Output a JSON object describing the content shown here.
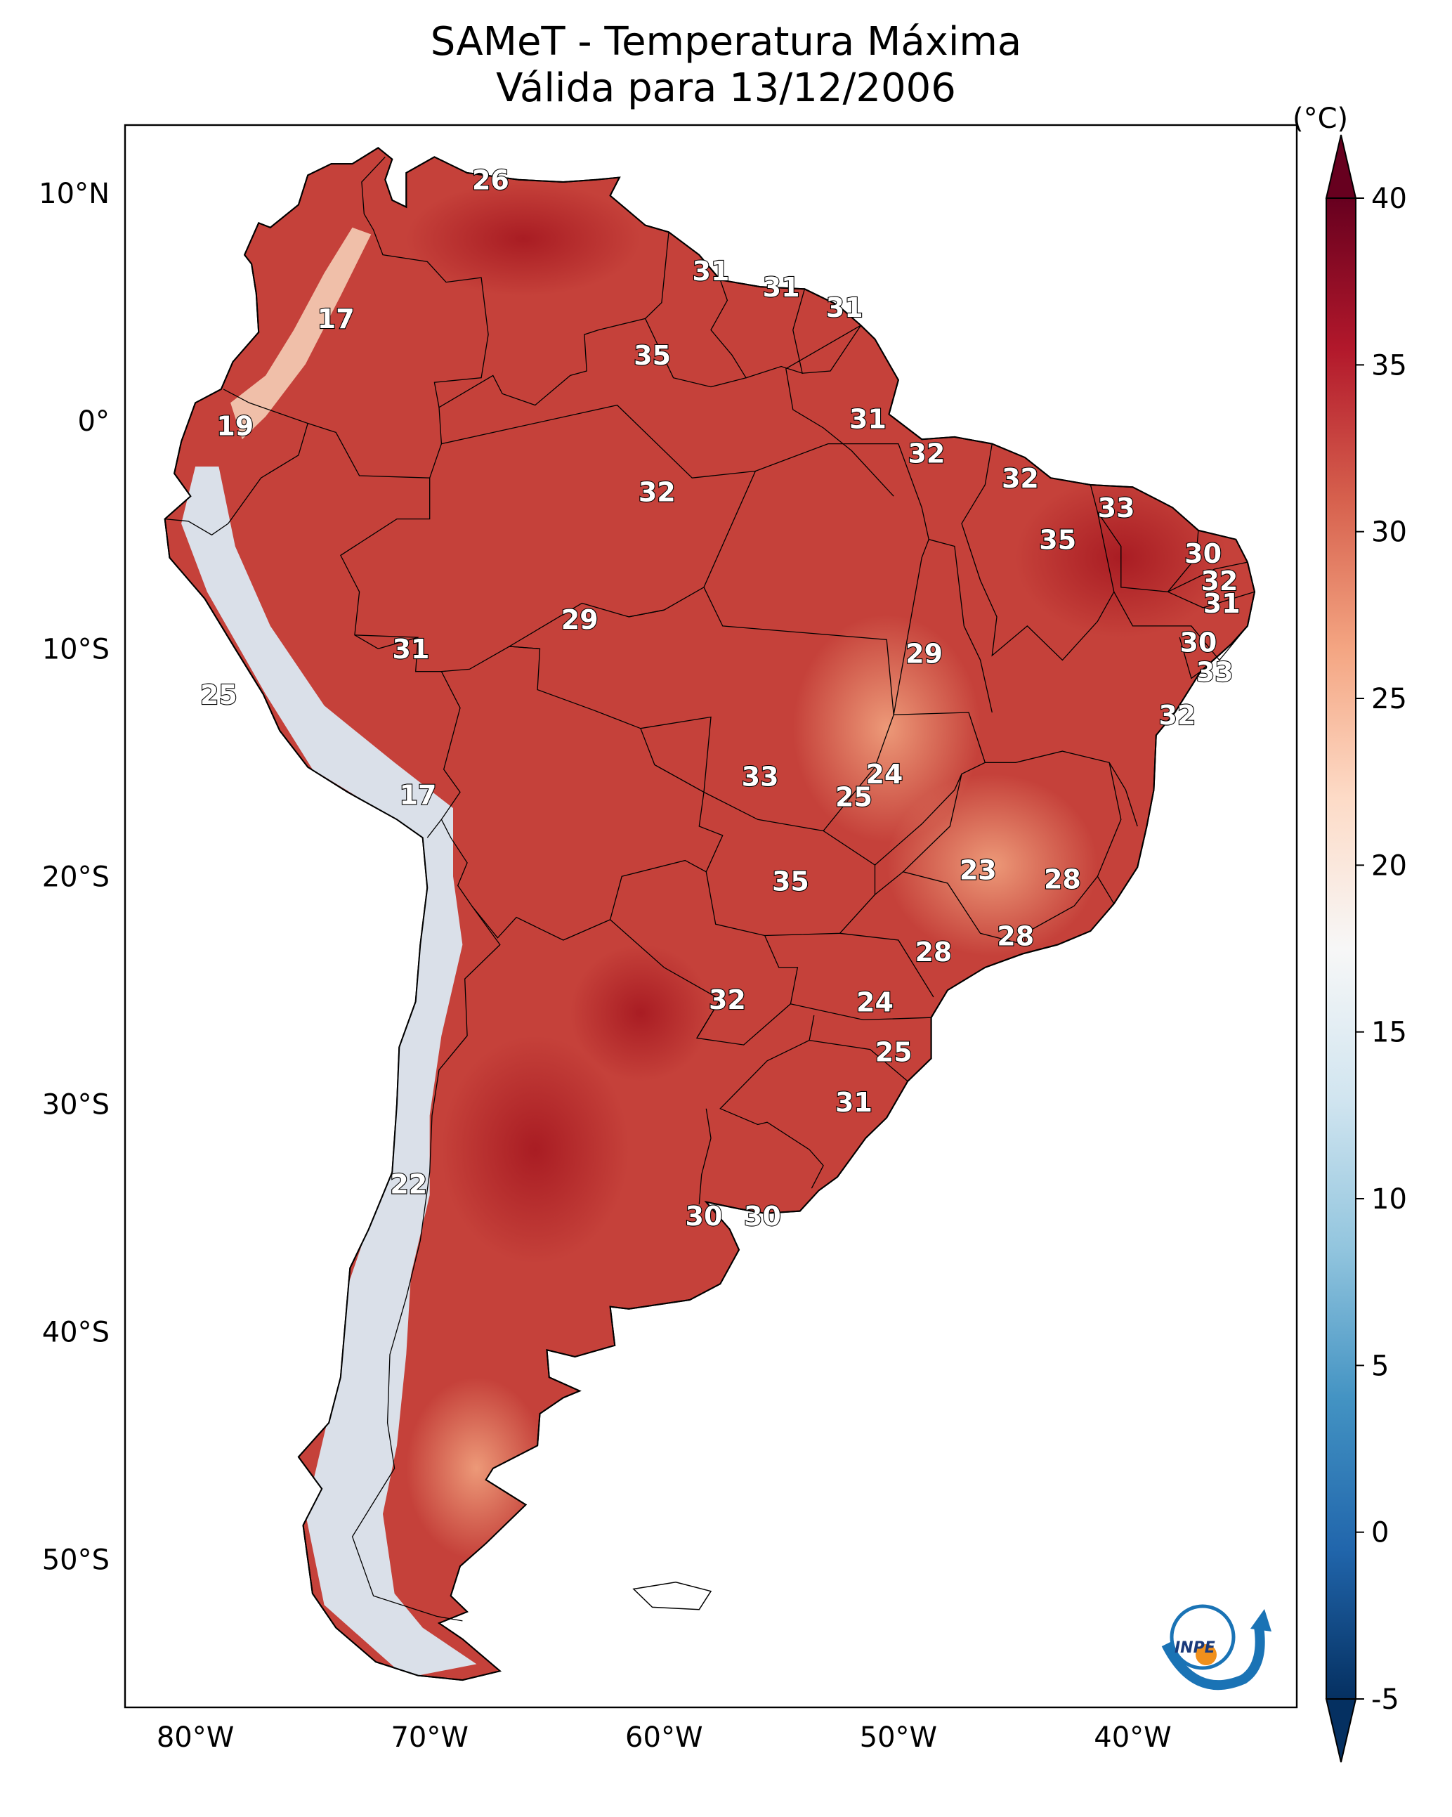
{
  "title": {
    "line1": "SAMeT - Temperatura Máxima",
    "line2": "Válida para 13/12/2006"
  },
  "map": {
    "lat_ticks": [
      "10°N",
      "0°",
      "10°S",
      "20°S",
      "30°S",
      "40°S",
      "50°S"
    ],
    "lon_ticks": [
      "80°W",
      "70°W",
      "60°W",
      "50°W",
      "40°W"
    ],
    "extent": {
      "lon_min": -83,
      "lon_max": -33,
      "lat_min": -56.5,
      "lat_max": 13
    }
  },
  "colorbar": {
    "unit": "(°C)",
    "ticks": [
      "40",
      "35",
      "30",
      "25",
      "20",
      "15",
      "10",
      "5",
      "0",
      "-5"
    ],
    "min": -5,
    "max": 40,
    "colors": [
      "#053061",
      "#2166ac",
      "#4393c3",
      "#92c5de",
      "#d1e5f0",
      "#f7f7f7",
      "#fddbc7",
      "#f4a582",
      "#d6604d",
      "#b2182b",
      "#67001f"
    ]
  },
  "labels": [
    {
      "value": "26",
      "lon": -67.4,
      "lat": 10.5
    },
    {
      "value": "17",
      "lon": -74.0,
      "lat": 4.4
    },
    {
      "value": "31",
      "lon": -58.0,
      "lat": 6.5
    },
    {
      "value": "31",
      "lon": -55.0,
      "lat": 5.8
    },
    {
      "value": "31",
      "lon": -52.3,
      "lat": 4.9
    },
    {
      "value": "35",
      "lon": -60.5,
      "lat": 2.8
    },
    {
      "value": "19",
      "lon": -78.3,
      "lat": -0.3
    },
    {
      "value": "31",
      "lon": -51.3,
      "lat": -0.0
    },
    {
      "value": "32",
      "lon": -48.8,
      "lat": -1.5
    },
    {
      "value": "32",
      "lon": -44.8,
      "lat": -2.6
    },
    {
      "value": "32",
      "lon": -60.3,
      "lat": -3.2
    },
    {
      "value": "33",
      "lon": -40.7,
      "lat": -3.9
    },
    {
      "value": "35",
      "lon": -43.2,
      "lat": -5.3
    },
    {
      "value": "30",
      "lon": -37.0,
      "lat": -5.9
    },
    {
      "value": "32",
      "lon": -36.3,
      "lat": -7.1
    },
    {
      "value": "31",
      "lon": -36.2,
      "lat": -8.1
    },
    {
      "value": "29",
      "lon": -63.6,
      "lat": -8.8
    },
    {
      "value": "31",
      "lon": -70.8,
      "lat": -10.1
    },
    {
      "value": "30",
      "lon": -37.2,
      "lat": -9.8
    },
    {
      "value": "29",
      "lon": -48.9,
      "lat": -10.3
    },
    {
      "value": "25",
      "lon": -79.0,
      "lat": -12.1
    },
    {
      "value": "33",
      "lon": -36.5,
      "lat": -11.1
    },
    {
      "value": "32",
      "lon": -38.1,
      "lat": -13.0
    },
    {
      "value": "24",
      "lon": -50.6,
      "lat": -15.6
    },
    {
      "value": "33",
      "lon": -55.9,
      "lat": -15.7
    },
    {
      "value": "25",
      "lon": -51.9,
      "lat": -16.6
    },
    {
      "value": "17",
      "lon": -70.5,
      "lat": -16.5
    },
    {
      "value": "23",
      "lon": -46.6,
      "lat": -19.8
    },
    {
      "value": "28",
      "lon": -43.0,
      "lat": -20.2
    },
    {
      "value": "35",
      "lon": -54.6,
      "lat": -20.3
    },
    {
      "value": "28",
      "lon": -45.0,
      "lat": -22.7
    },
    {
      "value": "28",
      "lon": -48.5,
      "lat": -23.4
    },
    {
      "value": "24",
      "lon": -51.0,
      "lat": -25.6
    },
    {
      "value": "32",
      "lon": -57.3,
      "lat": -25.5
    },
    {
      "value": "25",
      "lon": -50.2,
      "lat": -27.8
    },
    {
      "value": "31",
      "lon": -51.9,
      "lat": -30.0
    },
    {
      "value": "22",
      "lon": -70.9,
      "lat": -33.6
    },
    {
      "value": "30",
      "lon": -58.3,
      "lat": -35.0
    },
    {
      "value": "30",
      "lon": -55.8,
      "lat": -35.0
    }
  ],
  "logo": {
    "text": "INPE"
  }
}
